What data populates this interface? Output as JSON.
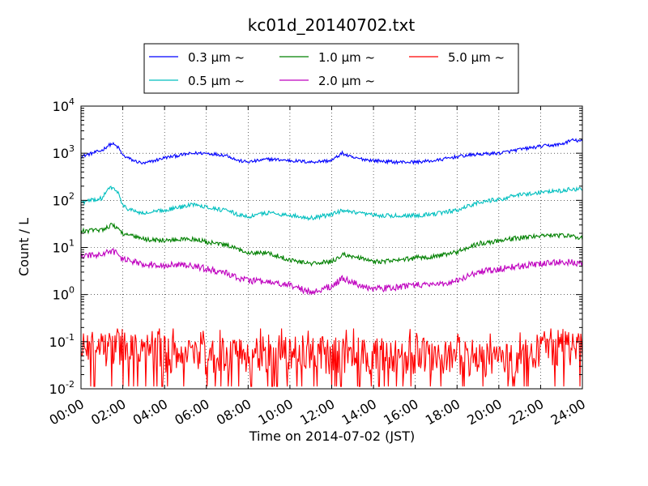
{
  "chart_data": {
    "type": "line",
    "title": "kc01d_20140702.txt",
    "xlabel": "Time on 2014-07-02 (JST)",
    "ylabel": "Count / L",
    "x_range_hours": [
      0,
      24
    ],
    "y_scale": "log",
    "ylim": [
      0.01,
      10000
    ],
    "grid": true,
    "legend_placement": "top-center",
    "x_tick_labels": [
      "00:00",
      "02:00",
      "04:00",
      "06:00",
      "08:00",
      "10:00",
      "12:00",
      "14:00",
      "16:00",
      "18:00",
      "20:00",
      "22:00",
      "24:00"
    ],
    "y_tick_labels": [
      {
        "base": "10",
        "exp": "-2"
      },
      {
        "base": "10",
        "exp": "-1"
      },
      {
        "base": "10",
        "exp": "0"
      },
      {
        "base": "10",
        "exp": "1"
      },
      {
        "base": "10",
        "exp": "2"
      },
      {
        "base": "10",
        "exp": "3"
      },
      {
        "base": "10",
        "exp": "4"
      }
    ],
    "series": [
      {
        "name": "0.3 μm ~",
        "color": "#0000ff",
        "x": [
          0,
          1,
          1.3,
          1.5,
          1.8,
          2,
          2.5,
          3,
          4,
          5,
          5.5,
          6,
          7,
          7.5,
          8,
          9,
          10,
          11,
          12,
          12.5,
          13,
          14,
          15,
          16,
          17,
          18,
          19,
          20,
          21,
          22,
          23,
          23.5,
          24
        ],
        "y": [
          850,
          1150,
          1450,
          1600,
          1300,
          900,
          700,
          600,
          800,
          950,
          1000,
          1000,
          900,
          700,
          650,
          750,
          700,
          650,
          700,
          1000,
          800,
          700,
          650,
          650,
          700,
          850,
          950,
          1000,
          1200,
          1400,
          1550,
          1900,
          1800
        ]
      },
      {
        "name": "0.5 μm ~",
        "color": "#00bfbf",
        "x": [
          0,
          1,
          1.3,
          1.5,
          1.8,
          2,
          2.5,
          3,
          4,
          5,
          5.5,
          6,
          7,
          7.5,
          8,
          9,
          10,
          11,
          12,
          12.5,
          13,
          14,
          15,
          16,
          17,
          18,
          19,
          20,
          21,
          22,
          23,
          23.5,
          24
        ],
        "y": [
          90,
          110,
          170,
          190,
          140,
          75,
          60,
          52,
          62,
          75,
          85,
          72,
          60,
          50,
          45,
          55,
          48,
          42,
          50,
          60,
          55,
          48,
          47,
          48,
          52,
          62,
          90,
          105,
          130,
          150,
          160,
          175,
          170
        ]
      },
      {
        "name": "1.0 μm ~",
        "color": "#008000",
        "x": [
          0,
          1,
          1.3,
          1.5,
          1.8,
          2,
          2.5,
          3,
          4,
          5,
          5.5,
          6,
          7,
          7.5,
          8,
          9,
          10,
          11,
          12,
          12.5,
          13,
          14,
          15,
          16,
          17,
          18,
          19,
          20,
          21,
          22,
          23,
          23.5,
          24
        ],
        "y": [
          22,
          24,
          28,
          30,
          25,
          20,
          17,
          15,
          14,
          15,
          15,
          13,
          11,
          9,
          8,
          7.5,
          5.5,
          4.5,
          5,
          7,
          6.5,
          5,
          5.2,
          6,
          6.5,
          8,
          12,
          14,
          16,
          18,
          18,
          17,
          16
        ]
      },
      {
        "name": "2.0 μm ~",
        "color": "#bf00bf",
        "x": [
          0,
          1,
          1.3,
          1.5,
          1.8,
          2,
          2.5,
          3,
          4,
          5,
          5.5,
          6,
          7,
          7.5,
          8,
          9,
          10,
          11,
          12,
          12.5,
          13,
          14,
          15,
          16,
          17,
          18,
          19,
          20,
          21,
          22,
          23,
          23.5,
          24
        ],
        "y": [
          6.5,
          7,
          8,
          8.5,
          7,
          5.5,
          5,
          4.5,
          4.2,
          4.2,
          4,
          3.5,
          2.8,
          2.3,
          2.0,
          1.8,
          1.6,
          1.1,
          1.5,
          2.2,
          1.8,
          1.3,
          1.4,
          1.6,
          1.6,
          2.0,
          3.0,
          3.5,
          4.0,
          4.5,
          5.0,
          4.8,
          4.5
        ]
      },
      {
        "name": "5.0 μm ~",
        "color": "#ff0000",
        "x": [
          0,
          2,
          4,
          6,
          8,
          10,
          12,
          14,
          16,
          18,
          20,
          21,
          22,
          23,
          24
        ],
        "y": [
          0.06,
          0.08,
          0.05,
          0.05,
          0.05,
          0.06,
          0.05,
          0.05,
          0.05,
          0.05,
          0.04,
          0.04,
          0.07,
          0.08,
          0.06
        ]
      }
    ]
  }
}
